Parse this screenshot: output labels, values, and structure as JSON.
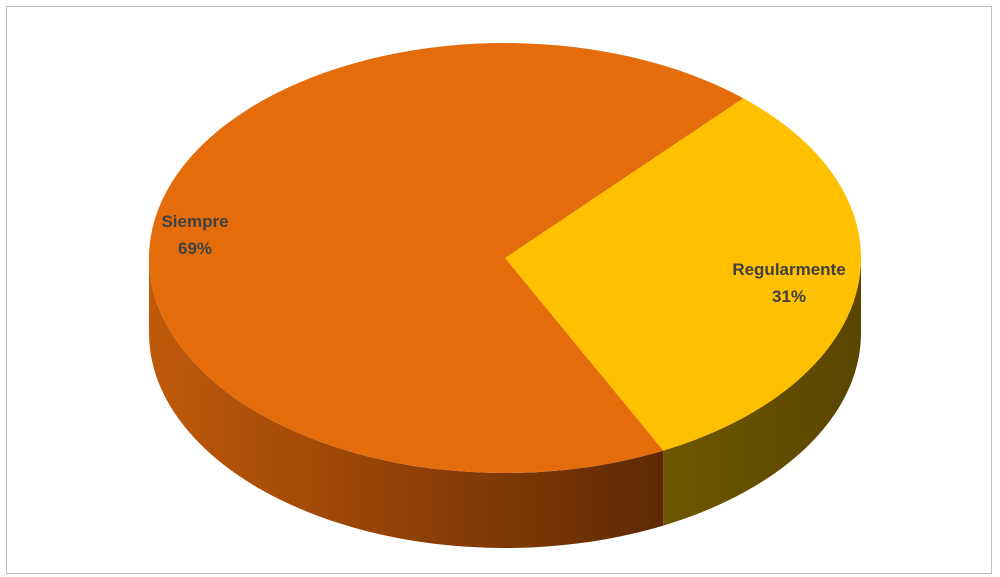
{
  "chart_data": {
    "type": "pie",
    "style": "3d",
    "title": "",
    "slices": [
      {
        "name": "Siempre",
        "value": 69,
        "label": "69%",
        "color": "#E46C0A",
        "side_color": "#A5490A"
      },
      {
        "name": "Regularmente",
        "value": 31,
        "label": "31%",
        "color": "#FFC000",
        "side_color": "#6B5300"
      }
    ],
    "legend": "none",
    "border": true
  }
}
